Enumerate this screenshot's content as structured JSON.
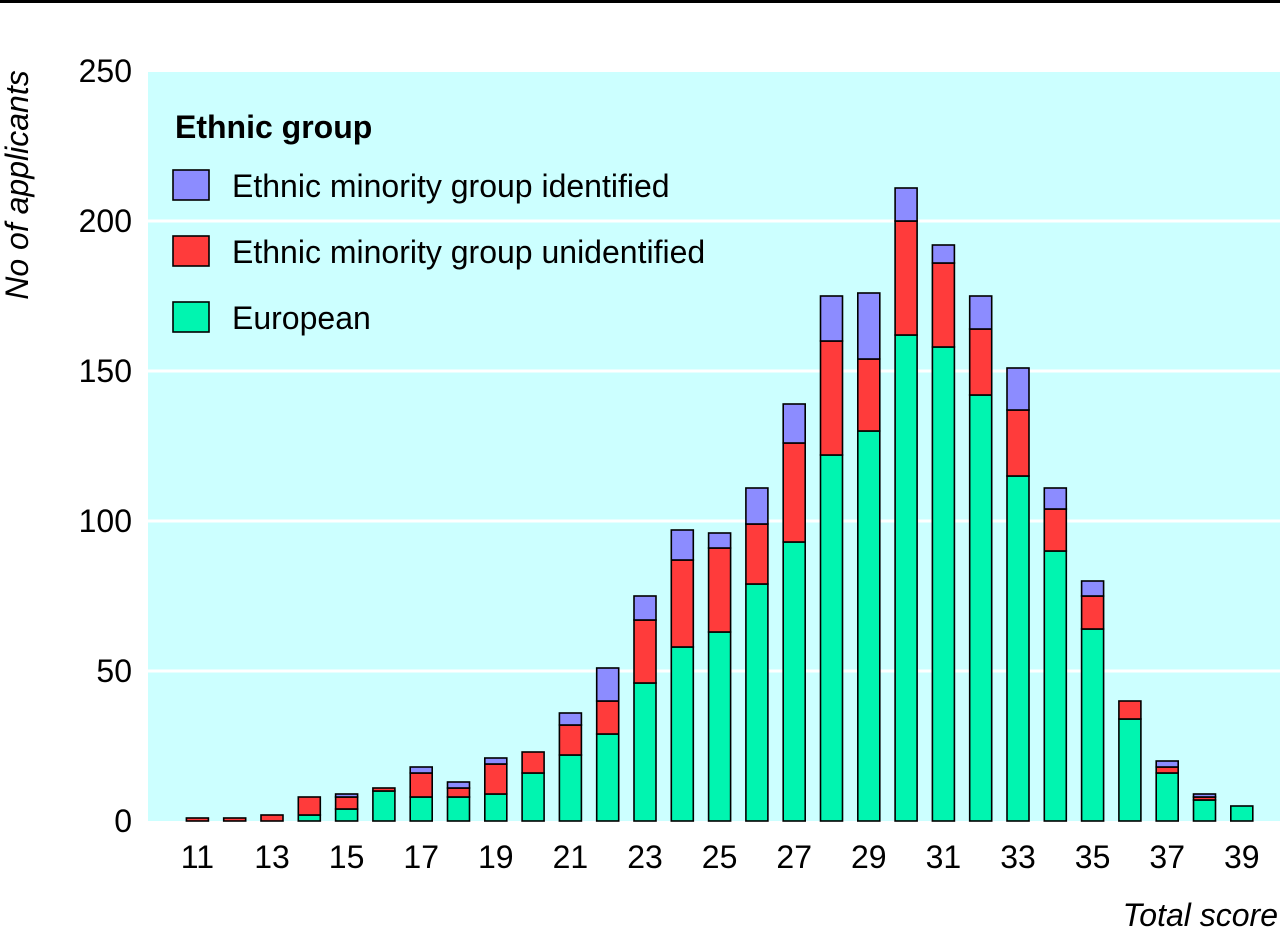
{
  "chart_data": {
    "type": "bar",
    "stacked": true,
    "xlabel": "Total score",
    "ylabel": "No of applicants",
    "ylim": [
      0,
      250
    ],
    "yticks": [
      0,
      50,
      100,
      150,
      200,
      250
    ],
    "xtick_labels": [
      "11",
      "13",
      "15",
      "17",
      "19",
      "21",
      "23",
      "25",
      "27",
      "29",
      "31",
      "33",
      "35",
      "37",
      "39"
    ],
    "grid": true,
    "legend_title": "Ethnic group",
    "legend_position": "top-left",
    "categories": [
      11,
      12,
      13,
      14,
      15,
      16,
      17,
      18,
      19,
      20,
      21,
      22,
      23,
      24,
      25,
      26,
      27,
      28,
      29,
      30,
      31,
      32,
      33,
      34,
      35,
      36,
      37,
      38,
      39
    ],
    "series": [
      {
        "name": "European",
        "color": "#00f5b0",
        "values": [
          0,
          0,
          0,
          2,
          4,
          10,
          8,
          8,
          9,
          16,
          22,
          29,
          46,
          58,
          63,
          79,
          93,
          122,
          130,
          162,
          158,
          142,
          115,
          90,
          64,
          34,
          16,
          7,
          5
        ]
      },
      {
        "name": "Ethnic minority group unidentified",
        "color": "#ff3b3b",
        "values": [
          1,
          1,
          2,
          6,
          4,
          1,
          8,
          3,
          10,
          7,
          10,
          11,
          21,
          29,
          28,
          20,
          33,
          38,
          24,
          38,
          28,
          22,
          22,
          14,
          11,
          6,
          2,
          1,
          0
        ]
      },
      {
        "name": "Ethnic minority group identified",
        "color": "#8c8cff",
        "values": [
          0,
          0,
          0,
          0,
          1,
          0,
          2,
          2,
          2,
          0,
          4,
          11,
          8,
          10,
          5,
          12,
          13,
          15,
          22,
          11,
          6,
          11,
          14,
          7,
          5,
          0,
          2,
          1,
          0
        ]
      }
    ],
    "colors": {
      "plot_background": "#ccffff",
      "gridline": "#ffffff",
      "bar_outline": "#000000"
    }
  }
}
